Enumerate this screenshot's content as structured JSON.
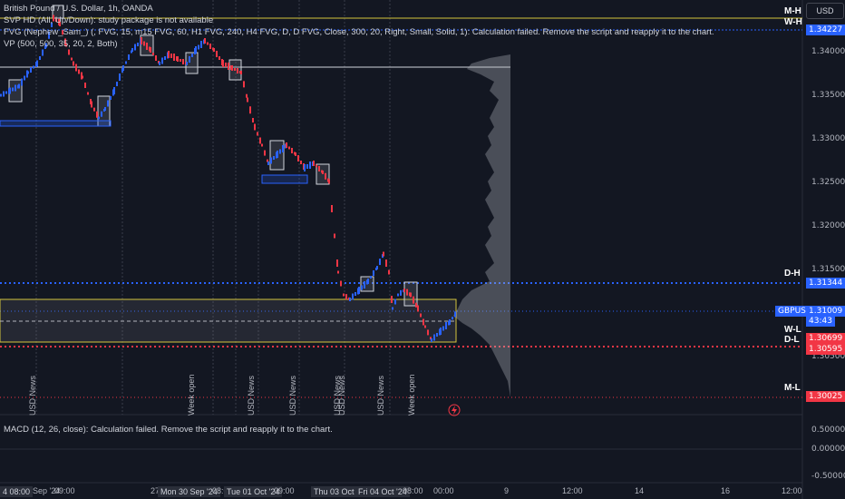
{
  "legend": {
    "title": "British Pound / U.S. Dollar, 1h, OANDA",
    "svp": "SVP HD (All, Up/Down): study package is not available",
    "fvg": "FVG (Nephew_Sam_) (, FVG, 15, m15 FVG, 60, H1 FVG, 240, H4 FVG, D, D FVG, Close, 300, 20, Right, Small, Solid, 1): Calculation failed. Remove the script and reapply it to the chart.",
    "vp": "VP (500, 500, 35, 20, 2, Both)",
    "macd": "MACD (12, 26, close): Calculation failed. Remove the script and reapply it to the chart."
  },
  "currency_button": "USD",
  "price_axis": [
    "1.34000",
    "1.33500",
    "1.33000",
    "1.32500",
    "1.32000",
    "1.31500",
    "1.30500"
  ],
  "macd_axis": [
    "0.50000",
    "0.00000",
    "-0.50000"
  ],
  "tags": {
    "m_h_price": "1.34227",
    "d_h_price": "1.31344",
    "symbol": "GBPUSD",
    "current_price": "1.31009",
    "countdown": "43:43",
    "w_l_price": "1.30699",
    "d_l_price": "1.30595",
    "m_l_price": "1.30025"
  },
  "levels": {
    "m_h": "M-H",
    "w_h": "W-H",
    "d_h": "D-H",
    "w_l": "W-L",
    "d_l": "D-L",
    "m_l": "M-L"
  },
  "event_labels": [
    "USD News",
    "Week open",
    "USD News",
    "USD News",
    "USD News",
    "USD News",
    "USD News",
    "Week open"
  ],
  "time_axis": [
    "4 08:00",
    "Sep '24",
    "09:00",
    "27",
    "Mon 30 Sep '24",
    "08:00",
    "Tue 01 Oct '24",
    "09:00",
    "Thu 03 Oct '24",
    "Fri 04 Oct '24",
    "08:00",
    "00:00",
    "9",
    "12:00",
    "14",
    "16",
    "12:00"
  ],
  "colors": {
    "up": "#2962ff",
    "down": "#f23645",
    "bg": "#131722",
    "blue_dot": "#2962ff",
    "red_dot": "#f23645",
    "yellow": "#d4c43c"
  }
}
